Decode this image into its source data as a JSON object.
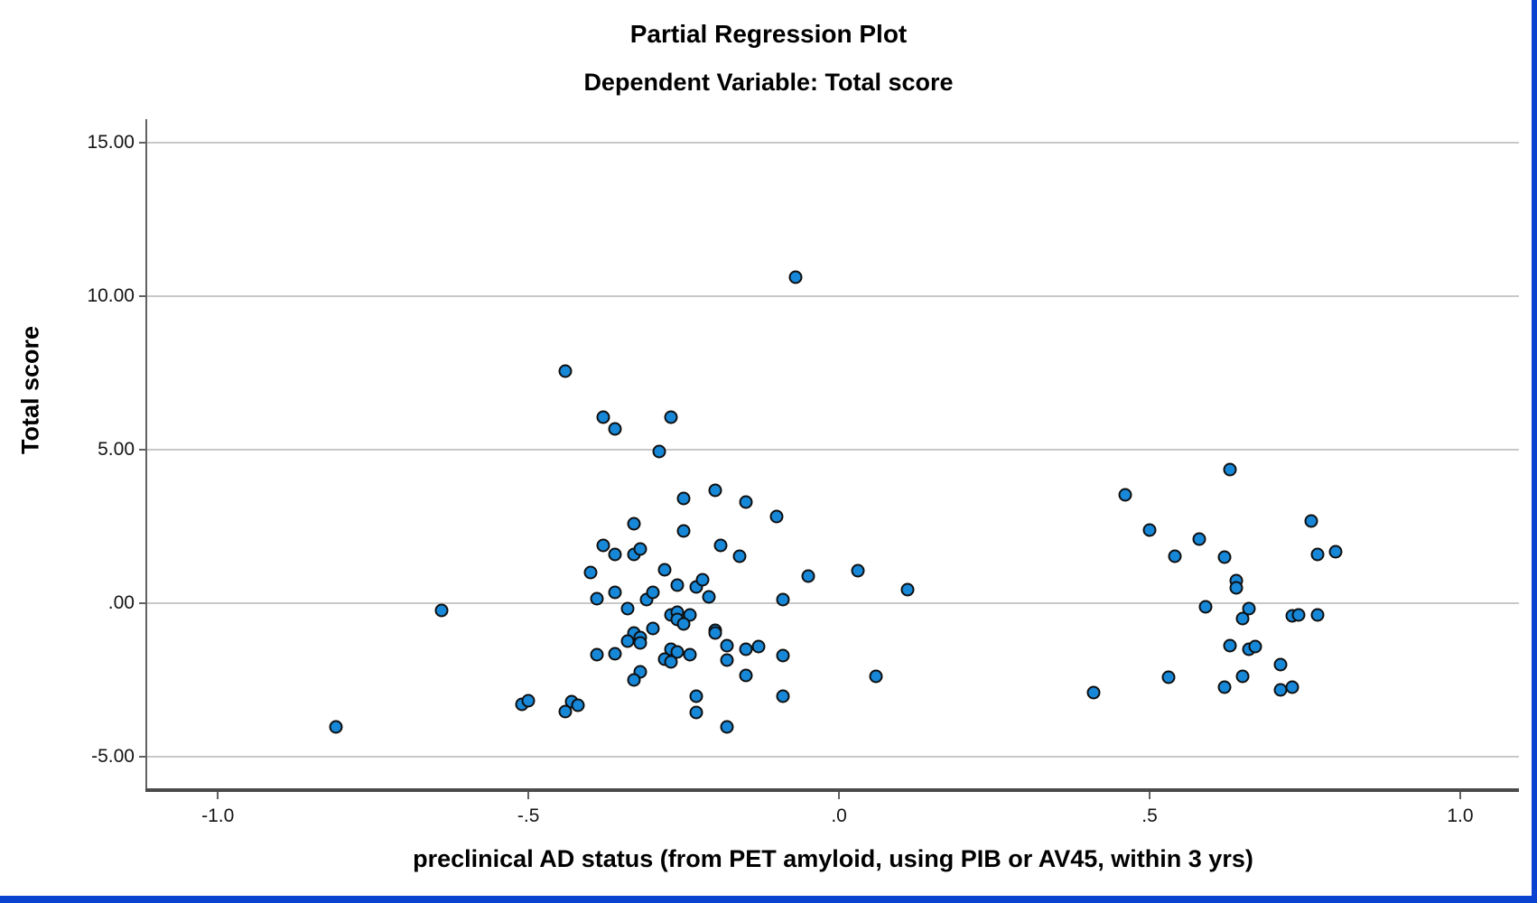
{
  "window": {
    "border_color": "#0a43cf",
    "background": "#ffffff"
  },
  "chart_data": {
    "type": "scatter",
    "title": "Partial Regression Plot",
    "subtitle": "Dependent Variable: Total score",
    "xlabel": "preclinical AD status (from PET amyloid, using PIB or AV45, within 3 yrs)",
    "ylabel": "Total score",
    "legend": "none",
    "grid": "horizontal-only",
    "gridline_color": "#c8c8c8",
    "point_color": "#1787d8",
    "point_edge_color": "#0f0f0f",
    "xlim": [
      -1.1137,
      1.0945
    ],
    "ylim": [
      -6.06,
      15.77
    ],
    "x_ticks": [
      {
        "label": "-1.0",
        "value": -1.0
      },
      {
        "label": "-.5",
        "value": -0.5
      },
      {
        "label": ".0",
        "value": 0.0
      },
      {
        "label": ".5",
        "value": 0.5
      },
      {
        "label": "1.0",
        "value": 1.0
      }
    ],
    "y_ticks": [
      {
        "label": "15.00",
        "value": 15
      },
      {
        "label": "10.00",
        "value": 10
      },
      {
        "label": "5.00",
        "value": 5
      },
      {
        "label": ".00",
        "value": 0
      },
      {
        "label": "-5.00",
        "value": -5
      }
    ],
    "points": [
      [
        -0.07,
        10.62
      ],
      [
        -0.44,
        7.56
      ],
      [
        -0.38,
        6.06
      ],
      [
        -0.27,
        6.06
      ],
      [
        -0.36,
        5.68
      ],
      [
        -0.29,
        4.94
      ],
      [
        -0.2,
        3.68
      ],
      [
        -0.25,
        3.41
      ],
      [
        -0.15,
        3.29
      ],
      [
        -0.1,
        2.82
      ],
      [
        -0.33,
        2.59
      ],
      [
        -0.25,
        2.35
      ],
      [
        -0.38,
        1.88
      ],
      [
        -0.19,
        1.88
      ],
      [
        -0.36,
        1.59
      ],
      [
        -0.33,
        1.59
      ],
      [
        -0.32,
        1.76
      ],
      [
        -0.16,
        1.53
      ],
      [
        -0.4,
        1.0
      ],
      [
        -0.28,
        1.09
      ],
      [
        -0.05,
        0.88
      ],
      [
        0.03,
        1.06
      ],
      [
        0.11,
        0.44
      ],
      [
        -0.64,
        -0.24
      ],
      [
        -0.26,
        0.59
      ],
      [
        -0.23,
        0.53
      ],
      [
        -0.22,
        0.76
      ],
      [
        -0.36,
        0.35
      ],
      [
        -0.39,
        0.15
      ],
      [
        -0.31,
        0.12
      ],
      [
        -0.3,
        0.35
      ],
      [
        -0.21,
        0.21
      ],
      [
        -0.09,
        0.12
      ],
      [
        -0.34,
        -0.18
      ],
      [
        -0.27,
        -0.38
      ],
      [
        -0.26,
        -0.29
      ],
      [
        -0.24,
        -0.38
      ],
      [
        -0.26,
        -0.53
      ],
      [
        -0.25,
        -0.68
      ],
      [
        -0.3,
        -0.82
      ],
      [
        -0.33,
        -0.97
      ],
      [
        -0.32,
        -1.12
      ],
      [
        -0.32,
        -1.29
      ],
      [
        -0.34,
        -1.24
      ],
      [
        -0.2,
        -0.88
      ],
      [
        -0.2,
        -0.97
      ],
      [
        -0.18,
        -1.38
      ],
      [
        -0.18,
        -1.85
      ],
      [
        -0.27,
        -1.5
      ],
      [
        -0.26,
        -1.59
      ],
      [
        -0.24,
        -1.68
      ],
      [
        -0.28,
        -1.82
      ],
      [
        -0.27,
        -1.91
      ],
      [
        -0.15,
        -1.5
      ],
      [
        -0.13,
        -1.41
      ],
      [
        -0.39,
        -1.68
      ],
      [
        -0.36,
        -1.65
      ],
      [
        -0.43,
        -3.21
      ],
      [
        -0.42,
        -3.32
      ],
      [
        -0.32,
        -2.24
      ],
      [
        -0.33,
        -2.5
      ],
      [
        -0.15,
        -2.35
      ],
      [
        -0.09,
        -1.71
      ],
      [
        -0.09,
        -3.03
      ],
      [
        -0.81,
        -4.03
      ],
      [
        -0.51,
        -3.29
      ],
      [
        -0.5,
        -3.18
      ],
      [
        -0.44,
        -3.53
      ],
      [
        -0.23,
        -3.03
      ],
      [
        -0.23,
        -3.56
      ],
      [
        -0.18,
        -4.03
      ],
      [
        0.06,
        -2.38
      ],
      [
        0.63,
        4.35
      ],
      [
        0.46,
        3.53
      ],
      [
        0.5,
        2.38
      ],
      [
        0.58,
        2.09
      ],
      [
        0.76,
        2.68
      ],
      [
        0.54,
        1.53
      ],
      [
        0.62,
        1.5
      ],
      [
        0.77,
        1.59
      ],
      [
        0.8,
        1.68
      ],
      [
        0.64,
        0.74
      ],
      [
        0.64,
        0.5
      ],
      [
        0.59,
        -0.12
      ],
      [
        0.66,
        -0.18
      ],
      [
        0.65,
        -0.5
      ],
      [
        0.73,
        -0.41
      ],
      [
        0.74,
        -0.38
      ],
      [
        0.77,
        -0.38
      ],
      [
        0.63,
        -1.38
      ],
      [
        0.66,
        -1.5
      ],
      [
        0.67,
        -1.41
      ],
      [
        0.71,
        -2.0
      ],
      [
        0.53,
        -2.41
      ],
      [
        0.65,
        -2.38
      ],
      [
        0.62,
        -2.74
      ],
      [
        0.71,
        -2.82
      ],
      [
        0.73,
        -2.74
      ],
      [
        0.41,
        -2.91
      ]
    ]
  }
}
